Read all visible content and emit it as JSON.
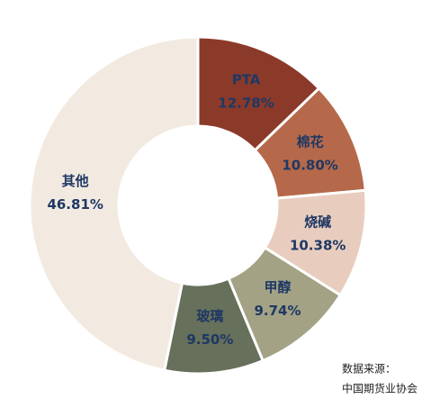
{
  "chart_data": {
    "type": "donut",
    "categories": [
      "PTA",
      "棉花",
      "烧碱",
      "甲醇",
      "玻璃",
      "其他"
    ],
    "values": [
      12.78,
      10.8,
      10.38,
      9.74,
      9.5,
      46.81
    ],
    "value_labels": [
      "12.78%",
      "10.80%",
      "10.38%",
      "9.74%",
      "9.50%",
      "46.81%"
    ],
    "colors": [
      "#8b3a2a",
      "#b5694a",
      "#e8cdbe",
      "#a3a285",
      "#66705a",
      "#f2eae1"
    ],
    "source": [
      "数据来源：",
      "中国期货业协会"
    ]
  }
}
